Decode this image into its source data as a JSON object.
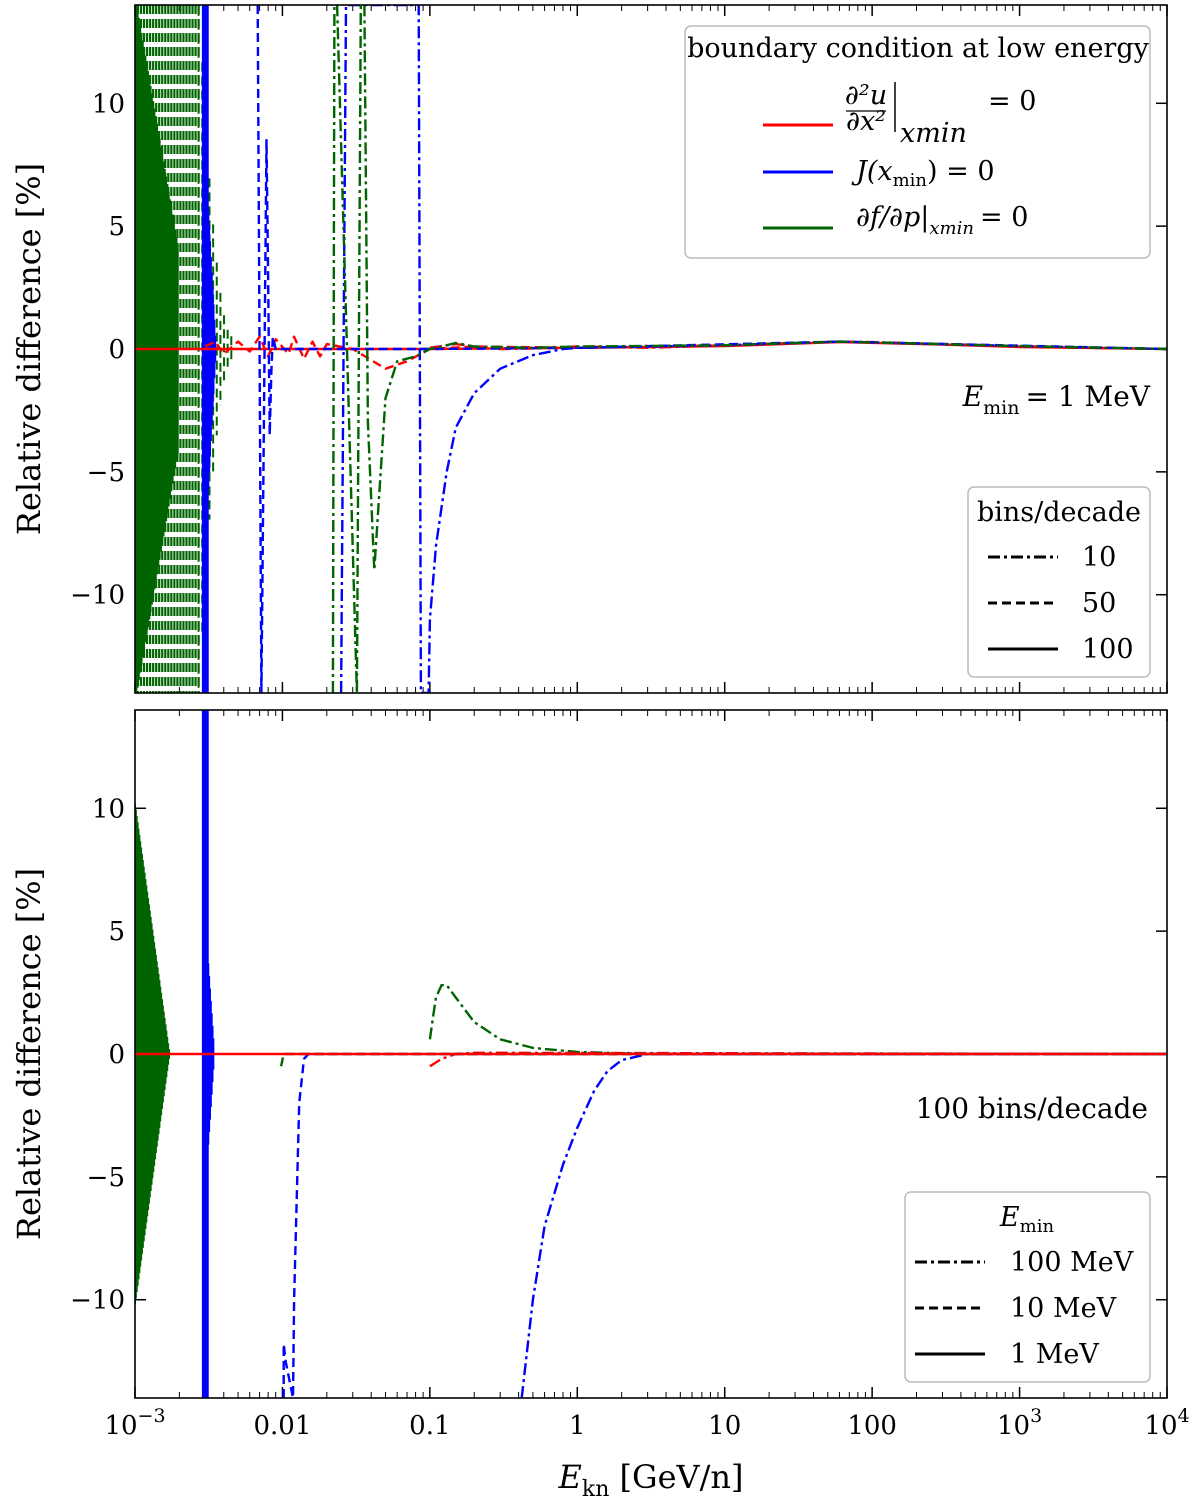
{
  "chart_data": [
    {
      "type": "line",
      "panel": "top",
      "xscale": "log",
      "xlim": [
        0.001,
        10000
      ],
      "ylim": [
        -14,
        14
      ],
      "ylabel": "Relative difference [%]",
      "xlabel": "",
      "yticks": [
        -10,
        -5,
        0,
        5,
        10
      ],
      "ytick_labels": [
        "−10",
        "−5",
        "0",
        "5",
        "10"
      ],
      "annotation": "E_min = 1 MeV",
      "annotation_parts": {
        "symbol": "E",
        "subscript": "min",
        "value": "= 1 MeV"
      },
      "legend_colors": {
        "title": "boundary condition at low energy",
        "placement": "top-right",
        "entries": [
          {
            "label": "∂²u/∂x²|xmin = 0",
            "label_parts": {
              "deriv": "∂²u",
              "deriv_den": "∂x²",
              "sub": "xmin",
              "rhs": "= 0"
            },
            "color": "#ff0000"
          },
          {
            "label": "J(xmin) = 0",
            "label_parts": {
              "lhs": "J(x",
              "sub": "min",
              "rhs": ") = 0"
            },
            "color": "#0000ff"
          },
          {
            "label": "∂f/∂p|xmin = 0",
            "label_parts": {
              "lhs": "∂f/∂p|",
              "sub": "xmin",
              "rhs": "= 0"
            },
            "color": "#006400"
          }
        ]
      },
      "legend_styles": {
        "title": "bins/decade",
        "placement": "lower-right",
        "entries": [
          {
            "label": "10",
            "style": "dashdot"
          },
          {
            "label": "50",
            "style": "dashed"
          },
          {
            "label": "100",
            "style": "solid"
          }
        ]
      },
      "series": [
        {
          "name": "red 10 bins/decade",
          "color": "#ff0000",
          "style": "dashdot",
          "points": [
            [
              0.1,
              0.05
            ],
            [
              0.15,
              0.2
            ],
            [
              0.2,
              0.1
            ],
            [
              0.3,
              0.0
            ],
            [
              0.5,
              0.02
            ],
            [
              1,
              0.1
            ],
            [
              3,
              0.05
            ],
            [
              10,
              0.15
            ],
            [
              30,
              0.25
            ],
            [
              60,
              0.3
            ],
            [
              100,
              0.28
            ],
            [
              300,
              0.2
            ],
            [
              1000,
              0.12
            ],
            [
              3000,
              0.05
            ],
            [
              10000,
              0.0
            ]
          ]
        },
        {
          "name": "red 50 bins/decade",
          "color": "#ff0000",
          "style": "dashed",
          "points": [
            [
              0.003,
              0.1
            ],
            [
              0.0035,
              0.3
            ],
            [
              0.004,
              -0.2
            ],
            [
              0.005,
              0.3
            ],
            [
              0.006,
              -0.1
            ],
            [
              0.007,
              0.5
            ],
            [
              0.008,
              -0.3
            ],
            [
              0.009,
              0.4
            ],
            [
              0.011,
              -0.2
            ],
            [
              0.012,
              0.5
            ],
            [
              0.014,
              -0.4
            ],
            [
              0.016,
              0.3
            ],
            [
              0.018,
              -0.3
            ],
            [
              0.02,
              0.2
            ],
            [
              0.03,
              0.0
            ],
            [
              0.05,
              -0.8
            ],
            [
              0.07,
              -0.5
            ],
            [
              0.1,
              0.0
            ],
            [
              0.2,
              0.1
            ],
            [
              1,
              0.05
            ],
            [
              10,
              0.15
            ],
            [
              60,
              0.3
            ],
            [
              1000,
              0.1
            ],
            [
              10000,
              0.0
            ]
          ]
        },
        {
          "name": "red 100 bins/decade",
          "color": "#ff0000",
          "style": "solid",
          "points": [
            [
              0.001,
              0.0
            ],
            [
              0.1,
              0.0
            ],
            [
              1,
              0.05
            ],
            [
              10,
              0.12
            ],
            [
              60,
              0.28
            ],
            [
              300,
              0.18
            ],
            [
              1000,
              0.08
            ],
            [
              10000,
              0.0
            ]
          ]
        },
        {
          "name": "blue 10 bins/decade",
          "color": "#0000ff",
          "style": "dashdot",
          "points": [
            [
              0.025,
              -14
            ],
            [
              0.027,
              14
            ],
            [
              0.029,
              14
            ],
            [
              0.03,
              14
            ],
            [
              0.084,
              14
            ],
            [
              0.087,
              -14
            ],
            [
              0.098,
              -14
            ],
            [
              0.1,
              -11
            ],
            [
              0.11,
              -8
            ],
            [
              0.13,
              -5
            ],
            [
              0.15,
              -3.2
            ],
            [
              0.2,
              -1.8
            ],
            [
              0.3,
              -0.8
            ],
            [
              0.5,
              -0.25
            ],
            [
              0.8,
              0.0
            ],
            [
              1,
              0.05
            ],
            [
              10,
              0.15
            ],
            [
              60,
              0.3
            ],
            [
              1000,
              0.12
            ],
            [
              10000,
              0.0
            ]
          ]
        },
        {
          "name": "blue 50 bins/decade",
          "color": "#0000ff",
          "style": "dashed",
          "points": [
            [
              0.0068,
              14
            ],
            [
              0.0072,
              -14
            ],
            [
              0.0078,
              8.5
            ],
            [
              0.008,
              3
            ],
            [
              0.0082,
              -3.5
            ],
            [
              0.0084,
              -1
            ],
            [
              0.0086,
              0.5
            ],
            [
              0.009,
              0.0
            ],
            [
              0.1,
              0.0
            ],
            [
              1,
              0.05
            ],
            [
              60,
              0.3
            ],
            [
              10000,
              0.0
            ]
          ]
        },
        {
          "name": "green 10 bins/decade",
          "color": "#006400",
          "style": "dashdot",
          "points": [
            [
              0.022,
              -14
            ],
            [
              0.0225,
              14
            ],
            [
              0.0235,
              14
            ],
            [
              0.032,
              -14
            ],
            [
              0.034,
              14
            ],
            [
              0.036,
              14
            ],
            [
              0.038,
              -3
            ],
            [
              0.042,
              -9
            ],
            [
              0.05,
              -2
            ],
            [
              0.06,
              -0.5
            ],
            [
              0.08,
              -0.3
            ],
            [
              0.1,
              0.0
            ],
            [
              0.12,
              0.1
            ],
            [
              0.15,
              0.25
            ],
            [
              0.2,
              0.1
            ],
            [
              0.5,
              0.05
            ],
            [
              1,
              0.1
            ],
            [
              10,
              0.15
            ],
            [
              60,
              0.3
            ],
            [
              1000,
              0.12
            ],
            [
              10000,
              0.0
            ]
          ]
        }
      ]
    },
    {
      "type": "line",
      "panel": "bottom",
      "xscale": "log",
      "xlim": [
        0.001,
        10000
      ],
      "ylim": [
        -14,
        14
      ],
      "ylabel": "Relative difference [%]",
      "xlabel": "E_kn [GeV/n]",
      "xlabel_parts": {
        "symbol": "E",
        "subscript": "kn",
        "units": " [GeV/n]"
      },
      "xticks": [
        0.001,
        0.01,
        0.1,
        1,
        10,
        100,
        1000,
        10000
      ],
      "xtick_labels": [
        {
          "base": "10",
          "exp": "−3"
        },
        {
          "text": "0.01"
        },
        {
          "text": "0.1"
        },
        {
          "text": "1"
        },
        {
          "text": "10"
        },
        {
          "text": "100"
        },
        {
          "base": "10",
          "exp": "3"
        },
        {
          "base": "10",
          "exp": "4"
        }
      ],
      "yticks": [
        -10,
        -5,
        0,
        5,
        10
      ],
      "ytick_labels": [
        "−10",
        "−5",
        "0",
        "5",
        "10"
      ],
      "annotation": "100 bins/decade",
      "legend_styles": {
        "title": "E_min",
        "title_parts": {
          "symbol": "E",
          "subscript": "min"
        },
        "placement": "lower-right",
        "entries": [
          {
            "label": "100 MeV",
            "style": "dashdot"
          },
          {
            "label": "10 MeV",
            "style": "dashed"
          },
          {
            "label": "1 MeV",
            "style": "solid"
          }
        ]
      },
      "series": [
        {
          "name": "green 100 MeV",
          "color": "#006400",
          "style": "dashdot",
          "points": [
            [
              0.1,
              0.6
            ],
            [
              0.105,
              1.5
            ],
            [
              0.11,
              2.3
            ],
            [
              0.12,
              2.8
            ],
            [
              0.13,
              2.8
            ],
            [
              0.15,
              2.3
            ],
            [
              0.2,
              1.3
            ],
            [
              0.3,
              0.6
            ],
            [
              0.5,
              0.25
            ],
            [
              1,
              0.08
            ],
            [
              3,
              0.0
            ],
            [
              10000,
              0.0
            ]
          ]
        },
        {
          "name": "blue 100 MeV",
          "color": "#0000ff",
          "style": "dashdot",
          "points": [
            [
              0.42,
              -14
            ],
            [
              0.5,
              -10
            ],
            [
              0.6,
              -7
            ],
            [
              0.8,
              -4.5
            ],
            [
              1,
              -3
            ],
            [
              1.3,
              -1.5
            ],
            [
              1.6,
              -0.7
            ],
            [
              2,
              -0.25
            ],
            [
              3,
              0.0
            ],
            [
              10000,
              0.0
            ]
          ]
        },
        {
          "name": "red 100 MeV",
          "color": "#ff0000",
          "style": "dashdot",
          "points": [
            [
              0.1,
              -0.5
            ],
            [
              0.12,
              -0.2
            ],
            [
              0.15,
              0.0
            ],
            [
              0.2,
              0.05
            ],
            [
              10000,
              0.0
            ]
          ]
        },
        {
          "name": "blue 10 MeV",
          "color": "#0000ff",
          "style": "dashed",
          "points": [
            [
              0.0102,
              -14
            ],
            [
              0.0102,
              -11.8
            ],
            [
              0.0105,
              -12.5
            ],
            [
              0.0118,
              -14
            ],
            [
              0.012,
              -10
            ],
            [
              0.013,
              -2
            ],
            [
              0.014,
              -0.2
            ],
            [
              0.015,
              0.0
            ],
            [
              10000,
              0.0
            ]
          ]
        },
        {
          "name": "green 10 MeV",
          "color": "#006400",
          "style": "dashed",
          "points": [
            [
              0.0098,
              -0.5
            ],
            [
              0.0102,
              0.0
            ],
            [
              10000,
              0.0
            ]
          ]
        },
        {
          "name": "red 1 MeV",
          "color": "#ff0000",
          "style": "solid",
          "points": [
            [
              0.001,
              0.0
            ],
            [
              10000,
              0.0
            ]
          ]
        }
      ]
    }
  ]
}
